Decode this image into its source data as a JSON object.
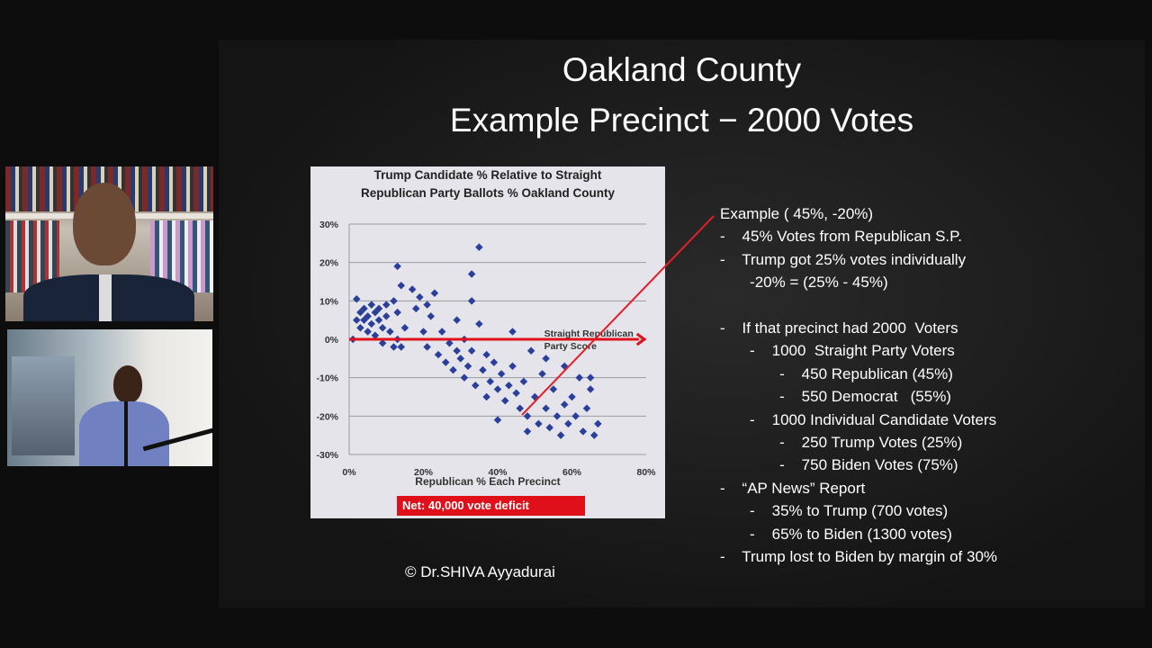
{
  "slide": {
    "title_line1": "Oakland County",
    "title_line2": "Example Precinct − 2000 Votes",
    "net_label": "Net:  40,000 vote deficit",
    "copyright": "© Dr.SHIVA Ayyadurai",
    "notes": [
      {
        "indent": 0,
        "text": "Example ( 45%, -20%)"
      },
      {
        "indent": 0,
        "text": "-    45% Votes from Republican S.P."
      },
      {
        "indent": 0,
        "text": "-    Trump got 25% votes individually"
      },
      {
        "indent": 1,
        "text": "       -20% = (25% - 45%)"
      },
      {
        "indent": 0,
        "text": " "
      },
      {
        "indent": 0,
        "text": "-    If that precinct had 2000  Voters"
      },
      {
        "indent": 1,
        "text": "       -    1000  Straight Party Voters"
      },
      {
        "indent": 2,
        "text": "              -    450 Republican (45%)"
      },
      {
        "indent": 2,
        "text": "              -    550 Democrat   (55%)"
      },
      {
        "indent": 1,
        "text": "       -    1000 Individual Candidate Voters"
      },
      {
        "indent": 2,
        "text": "              -    250 Trump Votes (25%)"
      },
      {
        "indent": 2,
        "text": "              -    750 Biden Votes (75%)"
      },
      {
        "indent": 0,
        "text": "-    “AP News” Report"
      },
      {
        "indent": 1,
        "text": "       -    35% to Trump (700 votes)"
      },
      {
        "indent": 1,
        "text": "       -    65% to Biden (1300 votes)"
      },
      {
        "indent": 0,
        "text": "-    Trump lost to Biden by margin of 30%"
      }
    ]
  },
  "chart_data": {
    "type": "scatter",
    "title": "Trump Candidate % Relative to Straight Republican Party Ballots % Oakland County",
    "xlabel": "Republican % Each Precinct",
    "ylabel": "",
    "xlim": [
      0,
      80
    ],
    "ylim": [
      -30,
      30
    ],
    "xticks": [
      "0%",
      "20%",
      "40%",
      "60%",
      "80%"
    ],
    "yticks": [
      "30%",
      "20%",
      "10%",
      "0%",
      "-10%",
      "-20%",
      "-30%"
    ],
    "grid": true,
    "reference_line": {
      "label": "Straight Republican Party Score",
      "y": 0,
      "color": "#e0101a"
    },
    "marker_color": "#2a3f9a",
    "points": [
      [
        1,
        0
      ],
      [
        2,
        10.5
      ],
      [
        2,
        5
      ],
      [
        3,
        7
      ],
      [
        3,
        3
      ],
      [
        4,
        8
      ],
      [
        4,
        5
      ],
      [
        5,
        6
      ],
      [
        5,
        2
      ],
      [
        6,
        9
      ],
      [
        6,
        4
      ],
      [
        7,
        7
      ],
      [
        7,
        1
      ],
      [
        8,
        8
      ],
      [
        8,
        5
      ],
      [
        9,
        3
      ],
      [
        9,
        -1
      ],
      [
        10,
        6
      ],
      [
        10,
        9
      ],
      [
        11,
        2
      ],
      [
        12,
        -2
      ],
      [
        12,
        10
      ],
      [
        13,
        7
      ],
      [
        13,
        0
      ],
      [
        13,
        19
      ],
      [
        14,
        14
      ],
      [
        14,
        -2
      ],
      [
        15,
        3
      ],
      [
        17,
        13
      ],
      [
        18,
        8
      ],
      [
        19,
        11
      ],
      [
        20,
        2
      ],
      [
        21,
        9
      ],
      [
        21,
        -2
      ],
      [
        22,
        6
      ],
      [
        23,
        12
      ],
      [
        24,
        -4
      ],
      [
        25,
        2
      ],
      [
        26,
        -6
      ],
      [
        27,
        -1
      ],
      [
        28,
        -8
      ],
      [
        29,
        -3
      ],
      [
        29,
        5
      ],
      [
        30,
        -5
      ],
      [
        31,
        -10
      ],
      [
        31,
        0
      ],
      [
        32,
        -7
      ],
      [
        33,
        17
      ],
      [
        33,
        10
      ],
      [
        33,
        -3
      ],
      [
        34,
        -12
      ],
      [
        35,
        24
      ],
      [
        35,
        4
      ],
      [
        36,
        -8
      ],
      [
        37,
        -15
      ],
      [
        37,
        -4
      ],
      [
        38,
        -11
      ],
      [
        39,
        -6
      ],
      [
        40,
        -21
      ],
      [
        40,
        -13
      ],
      [
        41,
        -9
      ],
      [
        42,
        -16
      ],
      [
        43,
        -12
      ],
      [
        44,
        2
      ],
      [
        44,
        -7
      ],
      [
        45,
        -14
      ],
      [
        46,
        -18
      ],
      [
        47,
        -11
      ],
      [
        48,
        -24
      ],
      [
        48,
        -20
      ],
      [
        49,
        -3
      ],
      [
        50,
        -15
      ],
      [
        51,
        -22
      ],
      [
        52,
        -9
      ],
      [
        53,
        -18
      ],
      [
        53,
        -5
      ],
      [
        54,
        -23
      ],
      [
        55,
        -13
      ],
      [
        56,
        -20
      ],
      [
        57,
        -25
      ],
      [
        58,
        -7
      ],
      [
        58,
        -17
      ],
      [
        59,
        -22
      ],
      [
        60,
        -15
      ],
      [
        61,
        -20
      ],
      [
        62,
        -10
      ],
      [
        63,
        -24
      ],
      [
        64,
        -18
      ],
      [
        65,
        -13
      ],
      [
        65,
        -10
      ],
      [
        66,
        -25
      ],
      [
        67,
        -22
      ]
    ]
  }
}
